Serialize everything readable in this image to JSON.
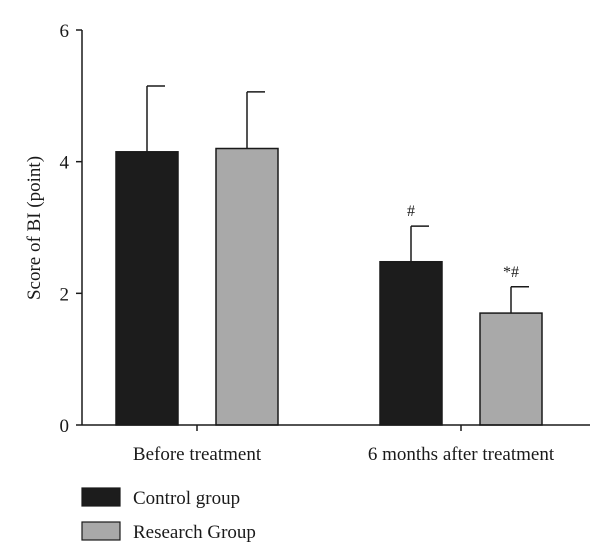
{
  "chart_data": {
    "type": "bar",
    "title": "",
    "xlabel": "",
    "ylabel": "Score of BI (point)",
    "ylim": [
      0,
      6
    ],
    "yticks": [
      0,
      2,
      4,
      6
    ],
    "grid": false,
    "legend_position": "bottom-left",
    "categories": [
      "Before treatment",
      "6 months after treatment"
    ],
    "series": [
      {
        "name": "Control group",
        "color": "#1c1c1c",
        "values": [
          4.15,
          2.48
        ],
        "errors": [
          1.0,
          0.54
        ],
        "annotations": [
          "",
          "#"
        ]
      },
      {
        "name": "Research Group",
        "color": "#a9a9a9",
        "values": [
          4.2,
          1.7
        ],
        "errors": [
          0.86,
          0.4
        ],
        "annotations": [
          "",
          "*#"
        ]
      }
    ]
  }
}
